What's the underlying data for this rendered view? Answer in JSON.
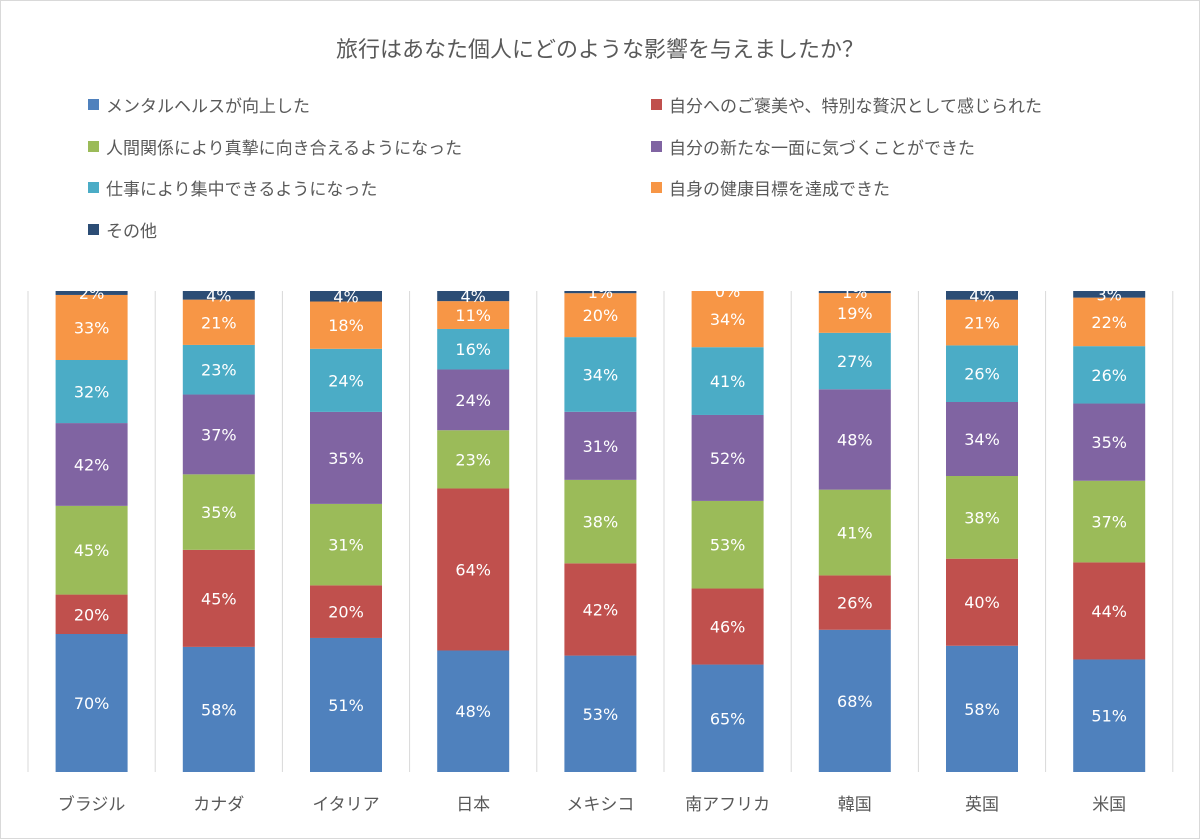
{
  "chart_data": {
    "type": "bar",
    "stacked": "percent",
    "title": "旅行はあなた個人にどのような影響を与えましたか？",
    "categories": [
      "ブラジル",
      "カナダ",
      "イタリア",
      "日本",
      "メキシコ",
      "南アフリカ",
      "韓国",
      "英国",
      "米国"
    ],
    "series": [
      {
        "name": "メンタルヘルスが向上した",
        "color": "#4f81bd",
        "values": [
          70,
          58,
          51,
          48,
          53,
          65,
          68,
          58,
          51
        ]
      },
      {
        "name": "自分へのご褒美や、特別な贅沢として感じられた",
        "color": "#c0504d",
        "values": [
          20,
          45,
          20,
          64,
          42,
          46,
          26,
          40,
          44
        ]
      },
      {
        "name": "人間関係により真摯に向き合えるようになった",
        "color": "#9bbb59",
        "values": [
          45,
          35,
          31,
          23,
          38,
          53,
          41,
          38,
          37
        ]
      },
      {
        "name": "自分の新たな一面に気づくことができた",
        "color": "#8064a2",
        "values": [
          42,
          37,
          35,
          24,
          31,
          52,
          48,
          34,
          35
        ]
      },
      {
        "name": "仕事により集中できるようになった",
        "color": "#4bacc6",
        "values": [
          32,
          23,
          24,
          16,
          34,
          41,
          27,
          26,
          26
        ]
      },
      {
        "name": "自身の健康目標を達成できた",
        "color": "#f79646",
        "values": [
          33,
          21,
          18,
          11,
          20,
          34,
          19,
          21,
          22
        ]
      },
      {
        "name": "その他",
        "color": "#2c4d75",
        "values": [
          2,
          4,
          4,
          4,
          1,
          0,
          1,
          4,
          3
        ]
      }
    ],
    "value_format": "percent",
    "legend_position": "top",
    "grid": "vertical category separators"
  }
}
